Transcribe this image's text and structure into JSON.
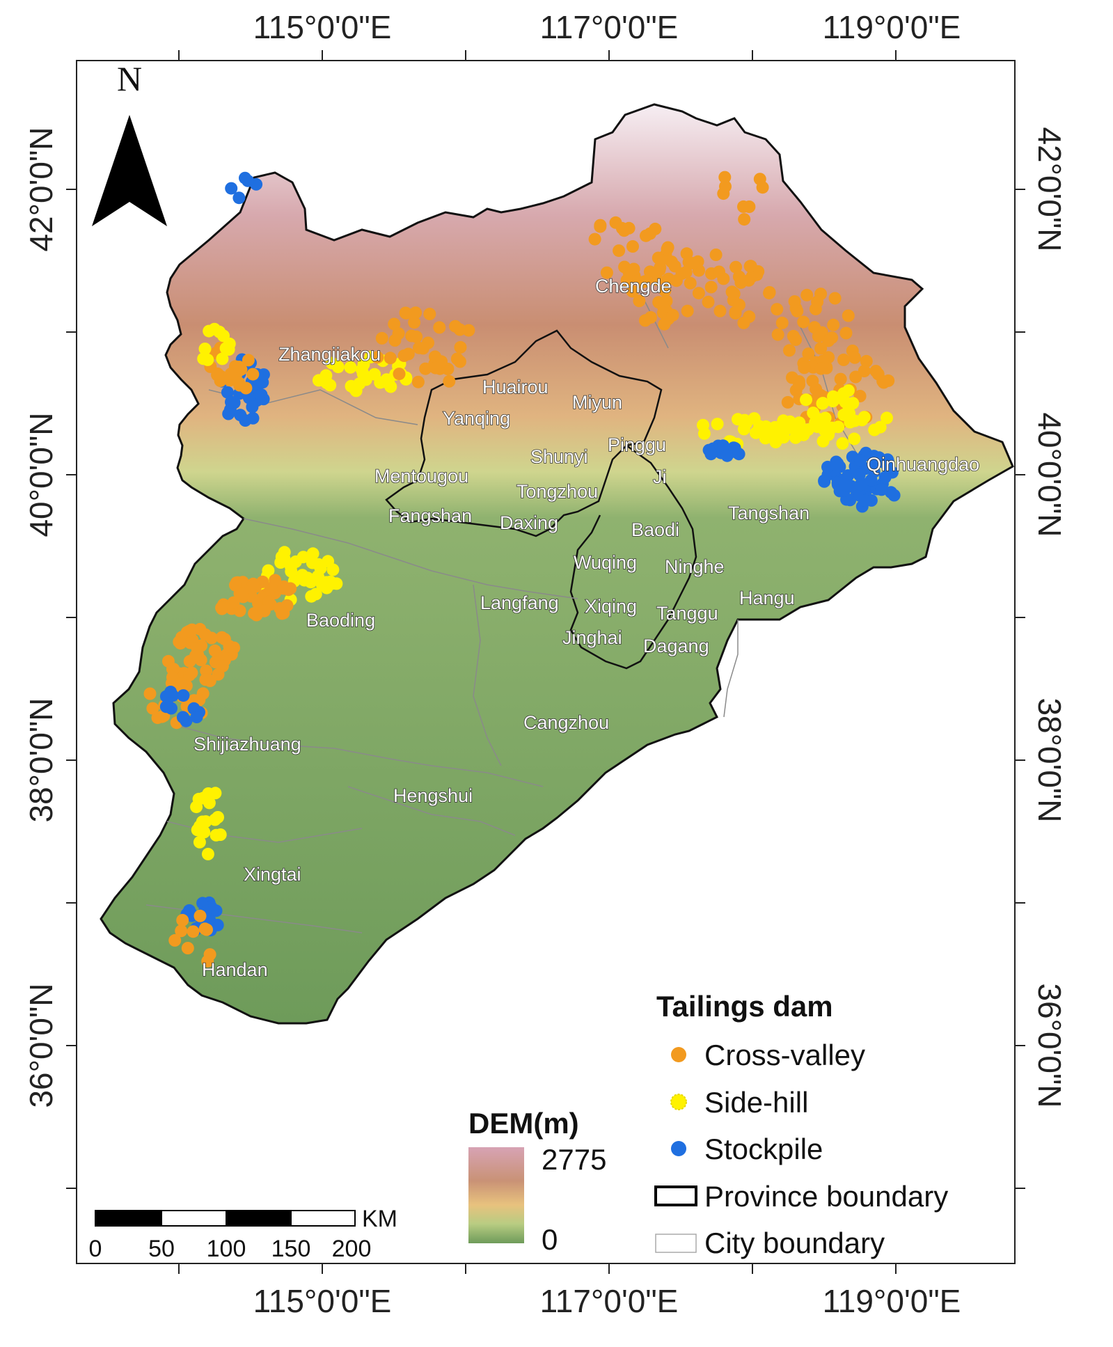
{
  "map": {
    "north_label": "N",
    "longitude_labels": [
      "115°0'0\"E",
      "117°0'0\"E",
      "119°0'0\"E"
    ],
    "latitude_labels": [
      "42°0'0\"N",
      "40°0'0\"N",
      "38°0'0\"N",
      "36°0'0\"N"
    ],
    "city_labels": [
      "Chengde",
      "Zhangjiakou",
      "Huairou",
      "Miyun",
      "Yanqing",
      "Pinggu",
      "Shunyi",
      "Qinhuangdao",
      "Mentougou",
      "Ji",
      "Tongzhou",
      "Tangshan",
      "Fangshan",
      "Daxing",
      "Baodi",
      "Wuqing",
      "Ninghe",
      "Hangu",
      "Langfang",
      "Xiqing",
      "Tanggu",
      "Baoding",
      "Jinghai",
      "Dagang",
      "Cangzhou",
      "Shijiazhuang",
      "Hengshui",
      "Xingtai",
      "Handan"
    ],
    "colors": {
      "cross_valley": "#f29a1f",
      "side_hill": "#fff200",
      "stockpile": "#1f6fe0",
      "lowland": "#6e9b5a",
      "highland": "#d4a3a8"
    }
  },
  "legend": {
    "title": "Tailings  dam",
    "items": [
      "Cross-valley",
      "Side-hill",
      "Stockpile",
      "Province boundary",
      "City boundary"
    ]
  },
  "dem": {
    "title": "DEM(m)",
    "max_label": "2775",
    "min_label": "0"
  },
  "scalebar": {
    "unit": "KM",
    "ticks": [
      "0",
      "50",
      "100",
      "150",
      "200"
    ]
  }
}
